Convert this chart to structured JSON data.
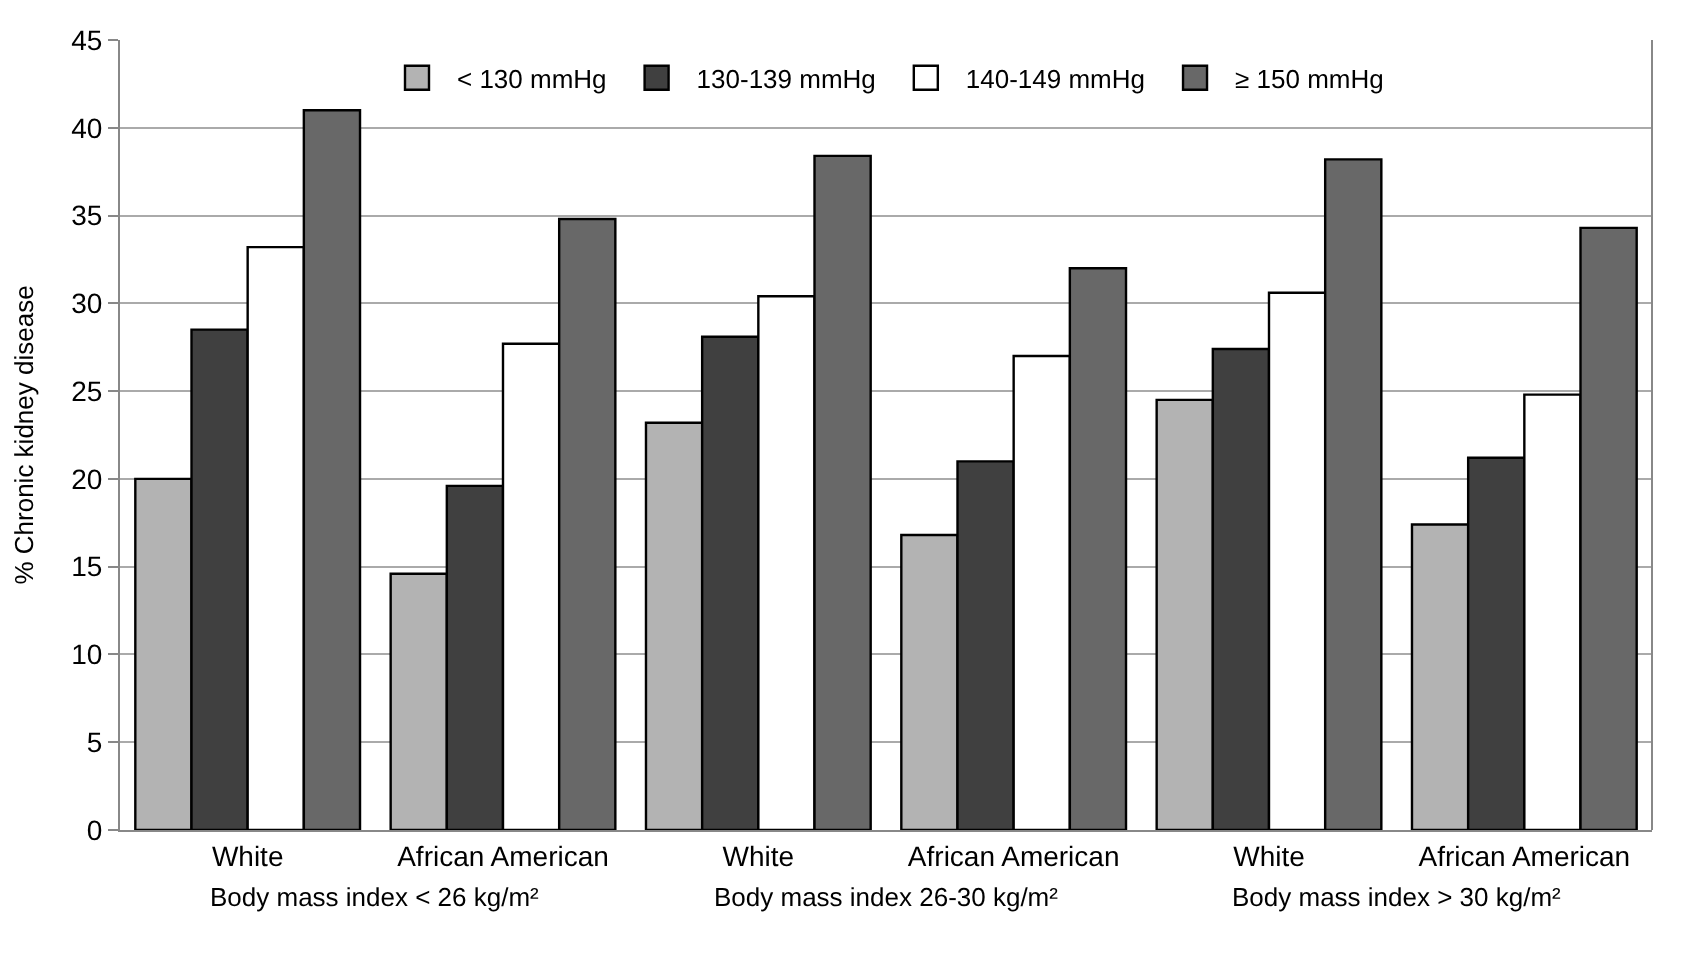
{
  "chart_data": {
    "type": "bar",
    "ylabel": "% Chronic kidney disease",
    "categories": [
      "White",
      "African American",
      "White",
      "African American",
      "White",
      "African American"
    ],
    "series": [
      {
        "name": "< 130 mmHg",
        "color": "#b3b3b3",
        "values": [
          20.0,
          14.6,
          23.2,
          16.8,
          24.5,
          17.4
        ]
      },
      {
        "name": "130-139 mmHg",
        "color": "#404040",
        "values": [
          28.5,
          19.6,
          28.1,
          21.0,
          27.4,
          21.2
        ]
      },
      {
        "name": "140-149 mmHg",
        "color": "#ffffff",
        "values": [
          33.2,
          27.7,
          30.4,
          27.0,
          30.6,
          24.8
        ]
      },
      {
        "name": "≥ 150 mmHg",
        "color": "#686868",
        "values": [
          41.0,
          34.8,
          38.4,
          32.0,
          38.2,
          34.3
        ]
      }
    ],
    "annotations": [
      "Body mass index < 26 kg/m²",
      "Body mass index 26-30 kg/m²",
      "Body mass index > 30 kg/m²"
    ],
    "ylim": [
      0,
      45
    ],
    "yticks": [
      0,
      5,
      10,
      15,
      20,
      25,
      30,
      35,
      40,
      45
    ],
    "grid": "y",
    "legend": "top"
  }
}
